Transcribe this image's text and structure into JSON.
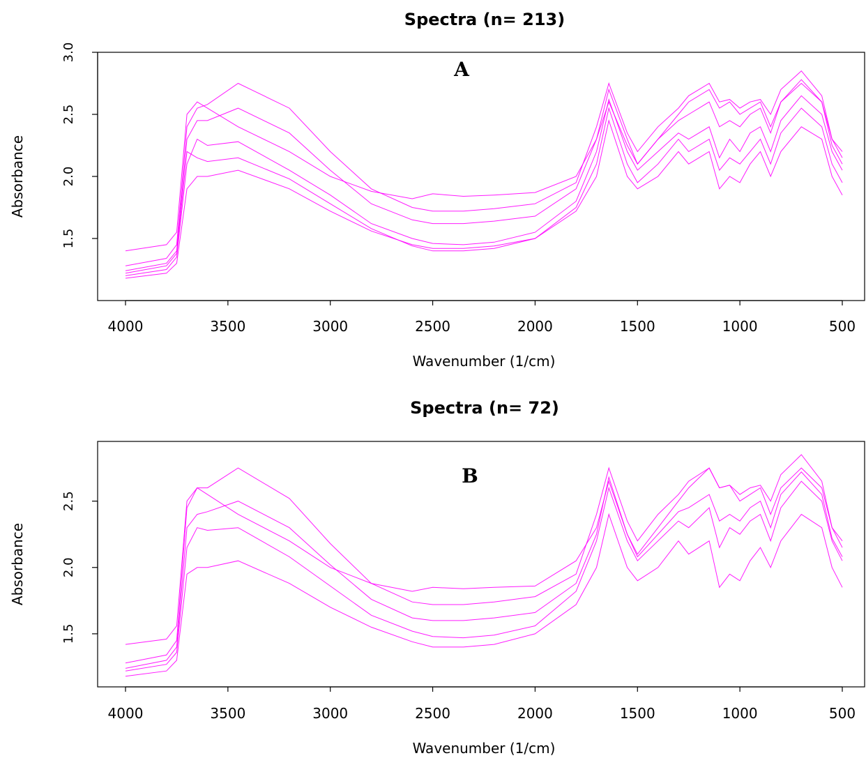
{
  "chart_data": [
    {
      "type": "line",
      "title": "Spectra (n= 213)",
      "panel_label": "A",
      "xlabel": "Wavenumber (1/cm)",
      "ylabel": "Absorbance",
      "xlim": [
        4000,
        500
      ],
      "x_reversed": true,
      "ylim": [
        1.0,
        3.0
      ],
      "xticks": [
        4000,
        3500,
        3000,
        2500,
        2000,
        1500,
        1000,
        500
      ],
      "yticks": [
        1.5,
        2.0,
        2.5,
        3.0
      ],
      "n_spectra": 213,
      "grid": false,
      "line_color": "#ff00ff",
      "series": [
        {
          "x": [
            4000,
            3800,
            3750,
            3700,
            3650,
            3600,
            3450,
            3200,
            3000,
            2800,
            2600,
            2500,
            2350,
            2200,
            2000,
            1800,
            1700,
            1640,
            1550,
            1500,
            1400,
            1300,
            1250,
            1150,
            1100,
            1050,
            1000,
            950,
            900,
            850,
            800,
            700,
            600,
            550,
            500
          ],
          "y": [
            1.18,
            1.22,
            1.3,
            1.9,
            2.0,
            2.0,
            2.05,
            1.9,
            1.72,
            1.56,
            1.45,
            1.42,
            1.42,
            1.44,
            1.5,
            1.72,
            2.0,
            2.45,
            2.0,
            1.9,
            2.0,
            2.2,
            2.1,
            2.2,
            1.9,
            2.0,
            1.95,
            2.1,
            2.2,
            2.0,
            2.2,
            2.4,
            2.3,
            2.0,
            1.85
          ]
        },
        {
          "x": [
            4000,
            3800,
            3750,
            3700,
            3650,
            3600,
            3450,
            3200,
            3000,
            2800,
            2600,
            2500,
            2350,
            2200,
            2000,
            1800,
            1700,
            1640,
            1550,
            1500,
            1400,
            1300,
            1250,
            1150,
            1100,
            1050,
            1000,
            950,
            900,
            850,
            800,
            700,
            600,
            550,
            500
          ],
          "y": [
            1.2,
            1.25,
            1.35,
            2.1,
            2.3,
            2.25,
            2.28,
            2.05,
            1.85,
            1.62,
            1.5,
            1.46,
            1.45,
            1.47,
            1.55,
            1.8,
            2.2,
            2.62,
            2.2,
            2.05,
            2.2,
            2.35,
            2.3,
            2.4,
            2.15,
            2.3,
            2.2,
            2.35,
            2.4,
            2.2,
            2.45,
            2.65,
            2.5,
            2.2,
            2.05
          ]
        },
        {
          "x": [
            4000,
            3800,
            3750,
            3700,
            3650,
            3600,
            3450,
            3200,
            3000,
            2800,
            2600,
            2500,
            2350,
            2200,
            2000,
            1800,
            1700,
            1640,
            1550,
            1500,
            1400,
            1300,
            1250,
            1150,
            1100,
            1050,
            1000,
            950,
            900,
            850,
            800,
            700,
            600,
            550,
            500
          ],
          "y": [
            1.28,
            1.34,
            1.45,
            2.4,
            2.55,
            2.58,
            2.75,
            2.55,
            2.2,
            1.9,
            1.75,
            1.72,
            1.72,
            1.74,
            1.78,
            1.95,
            2.4,
            2.75,
            2.35,
            2.2,
            2.4,
            2.55,
            2.65,
            2.75,
            2.6,
            2.62,
            2.55,
            2.6,
            2.62,
            2.5,
            2.7,
            2.85,
            2.65,
            2.3,
            2.2
          ]
        },
        {
          "x": [
            4000,
            3800,
            3750,
            3700,
            3650,
            3600,
            3450,
            3200,
            3000,
            2800,
            2600,
            2500,
            2350,
            2200,
            2000,
            1800,
            1700,
            1640,
            1550,
            1500,
            1400,
            1300,
            1250,
            1150,
            1100,
            1050,
            1000,
            950,
            900,
            850,
            800,
            700,
            600,
            550,
            500
          ],
          "y": [
            1.24,
            1.3,
            1.4,
            2.3,
            2.45,
            2.45,
            2.55,
            2.35,
            2.05,
            1.78,
            1.65,
            1.62,
            1.62,
            1.64,
            1.68,
            1.9,
            2.3,
            2.7,
            2.3,
            2.1,
            2.3,
            2.45,
            2.5,
            2.6,
            2.4,
            2.45,
            2.4,
            2.5,
            2.55,
            2.35,
            2.6,
            2.78,
            2.6,
            2.25,
            2.1
          ]
        },
        {
          "x": [
            4000,
            3800,
            3750,
            3700,
            3650,
            3600,
            3450,
            3200,
            3000,
            2800,
            2600,
            2500,
            2350,
            2200,
            2000,
            1800,
            1700,
            1640,
            1550,
            1500,
            1400,
            1300,
            1250,
            1150,
            1100,
            1050,
            1000,
            950,
            900,
            850,
            800,
            700,
            600,
            550,
            500
          ],
          "y": [
            1.22,
            1.28,
            1.38,
            2.2,
            2.15,
            2.12,
            2.15,
            1.98,
            1.78,
            1.58,
            1.44,
            1.4,
            1.4,
            1.42,
            1.5,
            1.75,
            2.1,
            2.55,
            2.1,
            1.95,
            2.1,
            2.3,
            2.2,
            2.3,
            2.05,
            2.15,
            2.1,
            2.2,
            2.3,
            2.1,
            2.35,
            2.55,
            2.4,
            2.1,
            1.95
          ]
        },
        {
          "x": [
            4000,
            3800,
            3750,
            3700,
            3650,
            3600,
            3450,
            3200,
            3000,
            2800,
            2600,
            2500,
            2350,
            2200,
            2000,
            1800,
            1700,
            1640,
            1550,
            1500,
            1400,
            1300,
            1250,
            1150,
            1100,
            1050,
            1000,
            950,
            900,
            850,
            800,
            700,
            600,
            550,
            500
          ],
          "y": [
            1.4,
            1.45,
            1.55,
            2.5,
            2.6,
            2.55,
            2.4,
            2.2,
            2.0,
            1.88,
            1.82,
            1.86,
            1.84,
            1.85,
            1.87,
            2.0,
            2.3,
            2.6,
            2.25,
            2.1,
            2.3,
            2.5,
            2.6,
            2.7,
            2.55,
            2.6,
            2.5,
            2.55,
            2.6,
            2.4,
            2.6,
            2.75,
            2.6,
            2.3,
            2.15
          ]
        }
      ]
    },
    {
      "type": "line",
      "title": "Spectra (n= 72)",
      "panel_label": "B",
      "xlabel": "Wavenumber (1/cm)",
      "ylabel": "Absorbance",
      "xlim": [
        4000,
        500
      ],
      "x_reversed": true,
      "ylim": [
        1.1,
        2.95
      ],
      "xticks": [
        4000,
        3500,
        3000,
        2500,
        2000,
        1500,
        1000,
        500
      ],
      "yticks": [
        1.5,
        2.0,
        2.5
      ],
      "n_spectra": 72,
      "grid": false,
      "line_color": "#ff00ff",
      "series": [
        {
          "x": [
            4000,
            3800,
            3750,
            3700,
            3650,
            3600,
            3450,
            3200,
            3000,
            2800,
            2600,
            2500,
            2350,
            2200,
            2000,
            1800,
            1700,
            1640,
            1550,
            1500,
            1400,
            1300,
            1250,
            1150,
            1100,
            1050,
            1000,
            950,
            900,
            850,
            800,
            700,
            600,
            550,
            500
          ],
          "y": [
            1.18,
            1.22,
            1.3,
            1.95,
            2.0,
            2.0,
            2.05,
            1.88,
            1.7,
            1.55,
            1.44,
            1.4,
            1.4,
            1.42,
            1.5,
            1.72,
            2.0,
            2.4,
            2.0,
            1.9,
            2.0,
            2.2,
            2.1,
            2.2,
            1.85,
            1.95,
            1.9,
            2.05,
            2.15,
            2.0,
            2.2,
            2.4,
            2.3,
            2.0,
            1.85
          ]
        },
        {
          "x": [
            4000,
            3800,
            3750,
            3700,
            3650,
            3600,
            3450,
            3200,
            3000,
            2800,
            2600,
            2500,
            2350,
            2200,
            2000,
            1800,
            1700,
            1640,
            1550,
            1500,
            1400,
            1300,
            1250,
            1150,
            1100,
            1050,
            1000,
            950,
            900,
            850,
            800,
            700,
            600,
            550,
            500
          ],
          "y": [
            1.22,
            1.27,
            1.36,
            2.15,
            2.3,
            2.28,
            2.3,
            2.08,
            1.86,
            1.64,
            1.52,
            1.48,
            1.47,
            1.49,
            1.56,
            1.82,
            2.2,
            2.6,
            2.2,
            2.05,
            2.2,
            2.35,
            2.3,
            2.45,
            2.15,
            2.3,
            2.25,
            2.35,
            2.4,
            2.2,
            2.45,
            2.65,
            2.5,
            2.2,
            2.05
          ]
        },
        {
          "x": [
            4000,
            3800,
            3750,
            3700,
            3650,
            3600,
            3450,
            3200,
            3000,
            2800,
            2600,
            2500,
            2350,
            2200,
            2000,
            1800,
            1700,
            1640,
            1550,
            1500,
            1400,
            1300,
            1250,
            1150,
            1100,
            1050,
            1000,
            950,
            900,
            850,
            800,
            700,
            600,
            550,
            500
          ],
          "y": [
            1.28,
            1.34,
            1.45,
            2.45,
            2.6,
            2.6,
            2.75,
            2.52,
            2.18,
            1.88,
            1.74,
            1.72,
            1.72,
            1.74,
            1.78,
            1.95,
            2.4,
            2.75,
            2.35,
            2.2,
            2.4,
            2.55,
            2.65,
            2.75,
            2.6,
            2.62,
            2.55,
            2.6,
            2.62,
            2.5,
            2.7,
            2.85,
            2.65,
            2.3,
            2.2
          ]
        },
        {
          "x": [
            4000,
            3800,
            3750,
            3700,
            3650,
            3600,
            3450,
            3200,
            3000,
            2800,
            2600,
            2500,
            2350,
            2200,
            2000,
            1800,
            1700,
            1640,
            1550,
            1500,
            1400,
            1300,
            1250,
            1150,
            1100,
            1050,
            1000,
            950,
            900,
            850,
            800,
            700,
            600,
            550,
            500
          ],
          "y": [
            1.42,
            1.46,
            1.56,
            2.5,
            2.6,
            2.55,
            2.4,
            2.2,
            2.0,
            1.88,
            1.82,
            1.85,
            1.84,
            1.85,
            1.86,
            2.05,
            2.3,
            2.65,
            2.25,
            2.1,
            2.3,
            2.5,
            2.6,
            2.75,
            2.6,
            2.62,
            2.5,
            2.55,
            2.6,
            2.4,
            2.6,
            2.75,
            2.6,
            2.3,
            2.15
          ]
        },
        {
          "x": [
            4000,
            3800,
            3750,
            3700,
            3650,
            3600,
            3450,
            3200,
            3000,
            2800,
            2600,
            2500,
            2350,
            2200,
            2000,
            1800,
            1700,
            1640,
            1550,
            1500,
            1400,
            1300,
            1250,
            1150,
            1100,
            1050,
            1000,
            950,
            900,
            850,
            800,
            700,
            600,
            550,
            500
          ],
          "y": [
            1.24,
            1.3,
            1.4,
            2.3,
            2.4,
            2.42,
            2.5,
            2.3,
            2.02,
            1.76,
            1.62,
            1.6,
            1.6,
            1.62,
            1.66,
            1.88,
            2.25,
            2.68,
            2.25,
            2.08,
            2.25,
            2.42,
            2.45,
            2.55,
            2.35,
            2.4,
            2.35,
            2.45,
            2.5,
            2.3,
            2.55,
            2.72,
            2.55,
            2.22,
            2.08
          ]
        }
      ]
    }
  ]
}
